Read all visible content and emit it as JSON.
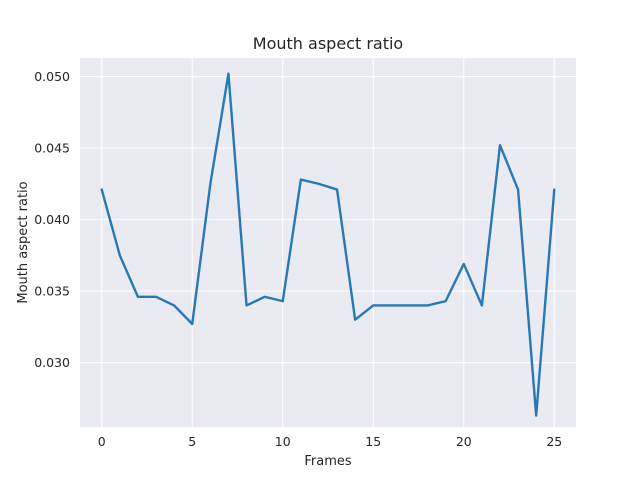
{
  "chart_data": {
    "type": "line",
    "title": "Mouth aspect ratio",
    "xlabel": "Frames",
    "ylabel": "Mouth aspect ratio",
    "x": [
      0,
      1,
      2,
      3,
      4,
      5,
      6,
      7,
      8,
      9,
      10,
      11,
      12,
      13,
      14,
      15,
      16,
      17,
      18,
      19,
      20,
      21,
      22,
      23,
      24,
      25
    ],
    "series": [
      {
        "values": [
          0.0421,
          0.0375,
          0.0346,
          0.0346,
          0.034,
          0.0327,
          0.0425,
          0.0502,
          0.034,
          0.0346,
          0.0343,
          0.0428,
          0.0425,
          0.0421,
          0.033,
          0.034,
          0.034,
          0.034,
          0.034,
          0.0343,
          0.0369,
          0.034,
          0.0452,
          0.0421,
          0.0263,
          0.0421
        ],
        "color": "#2878b5"
      }
    ],
    "xlim": [
      -1.2,
      26.2
    ],
    "ylim": [
      0.0255,
      0.0513
    ],
    "xticks": [
      0,
      5,
      10,
      15,
      20,
      25
    ],
    "xtick_labels": [
      "0",
      "5",
      "10",
      "15",
      "20",
      "25"
    ],
    "yticks": [
      0.03,
      0.035,
      0.04,
      0.045,
      0.05
    ],
    "ytick_labels": [
      "0.030",
      "0.035",
      "0.040",
      "0.045",
      "0.050"
    ],
    "grid": true,
    "background": "#eaeaf2"
  }
}
